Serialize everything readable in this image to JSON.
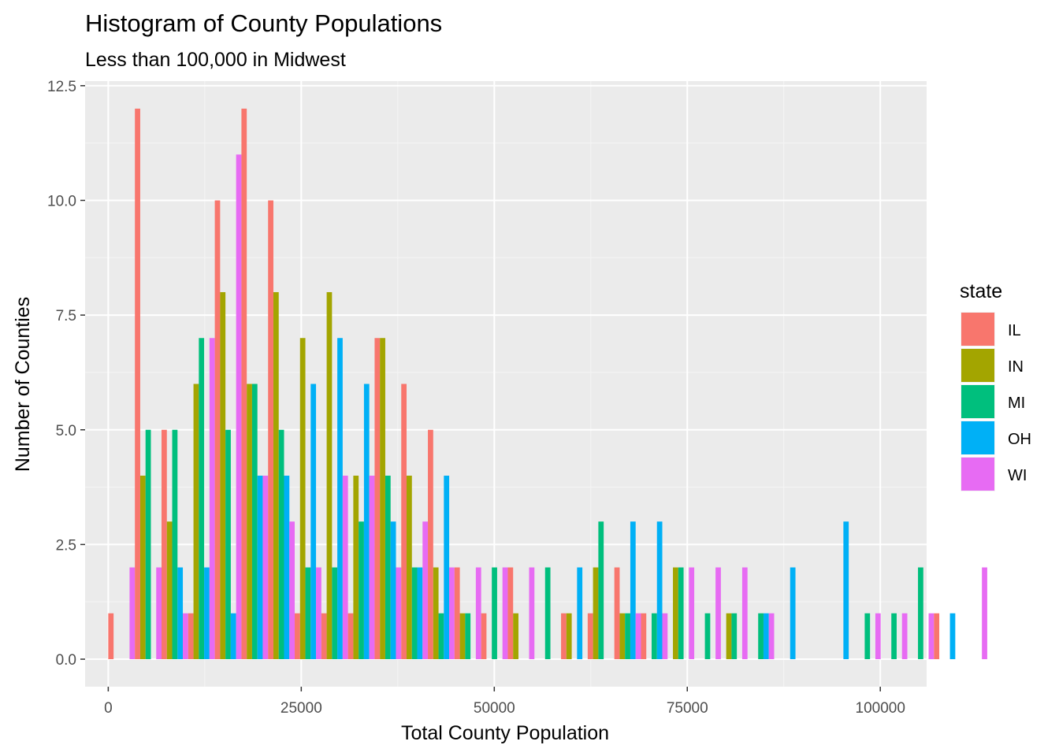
{
  "chart_data": {
    "type": "bar",
    "title": "Histogram of County Populations",
    "subtitle": "Less than 100,000 in Midwest",
    "xlabel": "Total County Population",
    "ylabel": "Number of Counties",
    "xlim": [
      -3000,
      106000
    ],
    "ylim": [
      -0.6,
      12.6
    ],
    "x_ticks": [
      0,
      25000,
      50000,
      75000,
      100000
    ],
    "x_tick_labels": [
      "0",
      "25000",
      "50000",
      "75000",
      "100000"
    ],
    "y_ticks": [
      0,
      2.5,
      5,
      7.5,
      10,
      12.5
    ],
    "y_tick_labels": [
      "0.0",
      "2.5",
      "5.0",
      "7.5",
      "10.0",
      "12.5"
    ],
    "bin_width": 3450,
    "legend": {
      "title": "state",
      "placement": "right"
    },
    "background": "#ebebeb",
    "grid": true,
    "series": [
      {
        "name": "IL",
        "color": "#F8766D",
        "values": [
          1,
          12,
          5,
          1,
          10,
          12,
          10,
          1,
          1,
          1,
          7,
          6,
          5,
          2,
          1,
          2,
          0,
          1,
          1,
          2,
          1,
          0,
          0,
          0,
          0,
          0,
          0,
          0,
          0,
          0,
          0,
          1,
          0
        ]
      },
      {
        "name": "IN",
        "color": "#A3A500",
        "values": [
          0,
          4,
          3,
          6,
          8,
          6,
          8,
          7,
          8,
          4,
          7,
          4,
          2,
          1,
          0,
          1,
          0,
          1,
          2,
          1,
          0,
          2,
          0,
          1,
          0,
          0,
          0,
          0,
          0,
          0,
          0,
          0,
          0
        ]
      },
      {
        "name": "MI",
        "color": "#00BF7D",
        "values": [
          0,
          5,
          5,
          7,
          5,
          6,
          5,
          2,
          2,
          3,
          4,
          2,
          1,
          1,
          2,
          0,
          2,
          0,
          3,
          1,
          1,
          2,
          1,
          1,
          1,
          0,
          0,
          0,
          1,
          1,
          2,
          0,
          0
        ]
      },
      {
        "name": "OH",
        "color": "#00B0F6",
        "values": [
          0,
          0,
          2,
          2,
          1,
          4,
          4,
          6,
          7,
          6,
          3,
          2,
          4,
          0,
          0,
          0,
          0,
          2,
          0,
          3,
          3,
          0,
          0,
          0,
          1,
          2,
          0,
          3,
          0,
          0,
          0,
          1,
          0
        ]
      },
      {
        "name": "WI",
        "color": "#E76BF3",
        "values": [
          2,
          2,
          1,
          7,
          11,
          4,
          3,
          2,
          4,
          4,
          2,
          3,
          2,
          2,
          2,
          2,
          0,
          0,
          0,
          1,
          1,
          2,
          2,
          2,
          1,
          0,
          0,
          0,
          1,
          1,
          1,
          0,
          2
        ]
      }
    ]
  }
}
